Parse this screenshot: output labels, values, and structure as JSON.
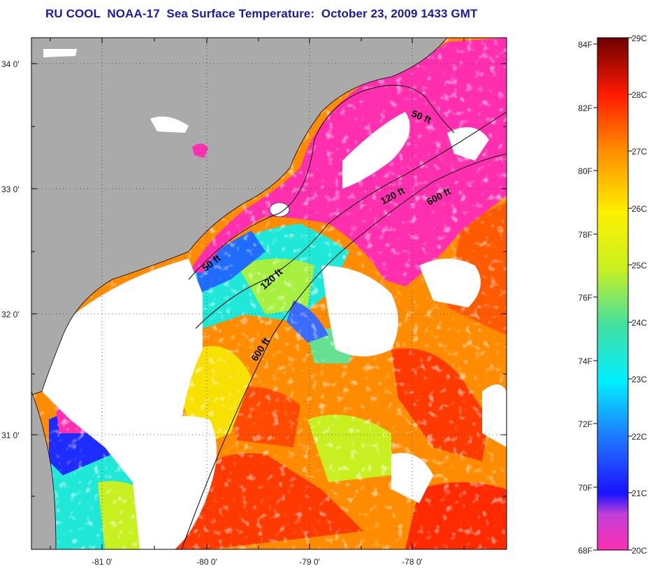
{
  "title": "RU COOL  NOAA-17  Sea Surface Temperature:  October 23, 2009 1433 GMT",
  "map": {
    "lat_labels": [
      "34 0'",
      "33 0'",
      "32 0'",
      "31 0'"
    ],
    "lon_labels": [
      "-81 0'",
      "-80 0'",
      "-79 0'",
      "-78 0'"
    ],
    "contours": [
      "50 ft",
      "50 ft",
      "120 ft",
      "120 ft",
      "600 ft",
      "600 ft"
    ]
  },
  "colorbar": {
    "fahrenheit_labels": [
      "84F",
      "82F",
      "80F",
      "78F",
      "76F",
      "74F",
      "72F",
      "70F",
      "68F"
    ],
    "celsius_labels": [
      "29C",
      "28C",
      "27C",
      "26C",
      "25C",
      "24C",
      "23C",
      "22C",
      "21C",
      "20C"
    ],
    "colors": {
      "c20": "#ff2fb0",
      "c20_5": "#c040d8",
      "c21": "#1a12ff",
      "c22": "#1f78ff",
      "c23": "#00f0ff",
      "c24": "#44e0a0",
      "c25": "#c8f020",
      "c26": "#fff000",
      "c27": "#ff8c00",
      "c28": "#ff1a00",
      "c29": "#6b0000"
    }
  },
  "colors": {
    "land": "#aaaaaa",
    "cloud": "#ffffff",
    "title": "#1a1aa6"
  }
}
